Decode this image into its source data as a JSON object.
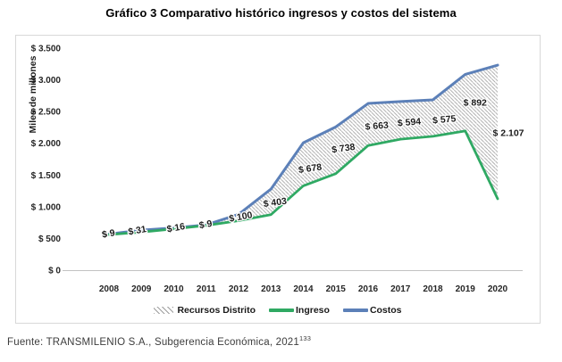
{
  "title": "Gráfico 3 Comparativo histórico ingresos y costos del sistema",
  "source_note": {
    "prefix": "Fuente: TRANSMILENIO S.A., Subgerencia Económica, 2021",
    "superscript": "133"
  },
  "chart_data": {
    "type": "line",
    "title": "Gráfico 3 Comparativo histórico ingresos y costos del sistema",
    "xlabel": "",
    "ylabel": "Miles de millones",
    "ylim": [
      0,
      3500
    ],
    "grid": false,
    "legend_position": "bottom",
    "yticks": [
      {
        "value": 0,
        "label": "$ 0"
      },
      {
        "value": 500,
        "label": "$ 500"
      },
      {
        "value": 1000,
        "label": "$ 1.000"
      },
      {
        "value": 1500,
        "label": "$ 1.500"
      },
      {
        "value": 2000,
        "label": "$ 2.000"
      },
      {
        "value": 2500,
        "label": "$ 2.500"
      },
      {
        "value": 3000,
        "label": "$ 3.000"
      },
      {
        "value": 3500,
        "label": "$ 3.500"
      }
    ],
    "categories": [
      "2008",
      "2009",
      "2010",
      "2011",
      "2012",
      "2013",
      "2014",
      "2015",
      "2016",
      "2017",
      "2018",
      "2019",
      "2020"
    ],
    "series": [
      {
        "name": "Ingreso",
        "type": "line",
        "color": "#2fa963",
        "values": [
          560,
          600,
          650,
          705,
          780,
          875,
          1330,
          1520,
          1965,
          2065,
          2110,
          2195,
          1125
        ]
      },
      {
        "name": "Costos",
        "type": "line",
        "color": "#5c80b8",
        "values": [
          569,
          631,
          666,
          714,
          880,
          1278,
          2008,
          2258,
          2628,
          2659,
          2685,
          3087,
          3232
        ]
      },
      {
        "name": "Recursos Distrito",
        "type": "area-between",
        "between": [
          "Ingreso",
          "Costos"
        ],
        "fill": "gray-diagonal-hatch",
        "values": [
          9,
          31,
          16,
          9,
          100,
          403,
          678,
          738,
          663,
          594,
          575,
          892,
          2107
        ],
        "labels": [
          "$ 9",
          "$ 31",
          "$ 16",
          "$ 9",
          "$ 100",
          "$ 403",
          "$ 678",
          "$ 738",
          "$ 663",
          "$ 594",
          "$ 575",
          "$ 892",
          "$ 2.107"
        ]
      }
    ],
    "colors": {
      "ingreso_line": "#2fa963",
      "costos_line": "#5c80b8",
      "hatch_stroke": "#a0a0a0",
      "axis_line": "#c2c2c2",
      "panel_border": "#d8d8d8",
      "label_text": "#1a1a1a"
    }
  }
}
